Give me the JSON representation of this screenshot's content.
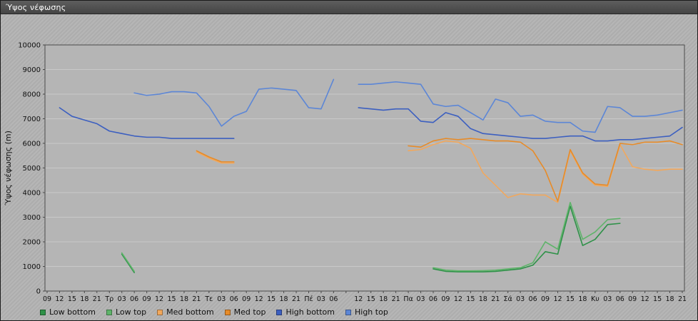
{
  "window": {
    "title": "Ύψος νέφωσης"
  },
  "chart_data": {
    "type": "line",
    "title": "Ύψος νέφωσης",
    "xlabel": "",
    "ylabel": "Ύψος νέφωσης (m)",
    "ylim": [
      0,
      10000
    ],
    "yticks": [
      0,
      1000,
      2000,
      3000,
      4000,
      5000,
      6000,
      7000,
      8000,
      9000,
      10000
    ],
    "grid": "horizontal",
    "legend_position": "bottom",
    "categories": [
      "09",
      "12",
      "15",
      "18",
      "21",
      "Τρ",
      "03",
      "06",
      "09",
      "12",
      "15",
      "18",
      "21",
      "Τε",
      "03",
      "06",
      "09",
      "12",
      "15",
      "18",
      "21",
      "Πέ",
      "03",
      "06",
      "",
      "12",
      "15",
      "18",
      "21",
      "Πα",
      "03",
      "06",
      "09",
      "12",
      "15",
      "18",
      "21",
      "Σά",
      "03",
      "06",
      "09",
      "12",
      "15",
      "18",
      "Κυ",
      "03",
      "06",
      "09",
      "12",
      "15",
      "18",
      "21"
    ],
    "series": [
      {
        "name": "Low bottom",
        "color": "#2e9148",
        "values": [
          null,
          null,
          null,
          null,
          null,
          null,
          1500,
          750,
          null,
          null,
          null,
          null,
          null,
          null,
          null,
          null,
          null,
          null,
          null,
          null,
          null,
          null,
          null,
          null,
          null,
          null,
          null,
          null,
          null,
          null,
          null,
          900,
          800,
          780,
          780,
          780,
          800,
          850,
          900,
          1050,
          1600,
          1500,
          3450,
          1850,
          2100,
          2700,
          2750,
          null,
          null,
          null,
          null,
          null
        ]
      },
      {
        "name": "Low top",
        "color": "#5fb46a",
        "values": [
          null,
          null,
          null,
          null,
          null,
          null,
          1550,
          800,
          null,
          null,
          null,
          null,
          null,
          null,
          null,
          null,
          null,
          null,
          null,
          null,
          null,
          null,
          null,
          null,
          null,
          null,
          null,
          null,
          null,
          null,
          null,
          950,
          850,
          820,
          820,
          830,
          850,
          900,
          950,
          1150,
          2000,
          1700,
          3600,
          2100,
          2400,
          2900,
          2950,
          null,
          null,
          null,
          null,
          null
        ]
      },
      {
        "name": "Med bottom",
        "color": "#f2a85c",
        "values": [
          null,
          null,
          null,
          null,
          null,
          null,
          null,
          null,
          null,
          null,
          null,
          null,
          5650,
          5400,
          5200,
          5200,
          null,
          null,
          null,
          null,
          null,
          null,
          null,
          null,
          null,
          null,
          null,
          null,
          null,
          5700,
          5750,
          5950,
          6100,
          6050,
          5800,
          4800,
          4300,
          3800,
          3950,
          3900,
          3900,
          3600,
          5700,
          4750,
          4300,
          4250,
          5950,
          5050,
          4950,
          4900,
          4950,
          4950
        ]
      },
      {
        "name": "Med top",
        "color": "#e78b28",
        "values": [
          null,
          null,
          null,
          null,
          null,
          null,
          null,
          null,
          null,
          null,
          null,
          null,
          5700,
          5450,
          5250,
          5250,
          null,
          null,
          null,
          null,
          null,
          null,
          null,
          null,
          null,
          null,
          null,
          null,
          null,
          5900,
          5850,
          6100,
          6200,
          6150,
          6200,
          6150,
          6100,
          6100,
          6050,
          5700,
          4900,
          3650,
          5750,
          4800,
          4350,
          4300,
          6000,
          5950,
          6050,
          6050,
          6100,
          5950
        ]
      },
      {
        "name": "High bottom",
        "color": "#3c5fc0",
        "values": [
          null,
          7450,
          7100,
          6950,
          6800,
          6500,
          6400,
          6300,
          6250,
          6250,
          6200,
          6200,
          6200,
          6200,
          6200,
          6200,
          null,
          null,
          null,
          null,
          null,
          null,
          null,
          null,
          null,
          7450,
          7400,
          7350,
          7400,
          7400,
          6900,
          6850,
          7250,
          7100,
          6600,
          6400,
          6350,
          6300,
          6250,
          6200,
          6200,
          6250,
          6300,
          6300,
          6100,
          6100,
          6150,
          6150,
          6200,
          6250,
          6300,
          6650
        ]
      },
      {
        "name": "High top",
        "color": "#5c86d6",
        "values": [
          null,
          null,
          null,
          null,
          null,
          null,
          null,
          8050,
          7950,
          8000,
          8100,
          8100,
          8050,
          7500,
          6700,
          7100,
          7300,
          8200,
          8250,
          8200,
          8150,
          7450,
          7400,
          8600,
          null,
          8400,
          8400,
          8450,
          8500,
          8450,
          8400,
          7600,
          7500,
          7550,
          7250,
          6950,
          7800,
          7650,
          7100,
          7150,
          6900,
          6850,
          6850,
          6500,
          6450,
          7500,
          7450,
          7100,
          7100,
          7150,
          7250,
          7350
        ]
      }
    ]
  }
}
